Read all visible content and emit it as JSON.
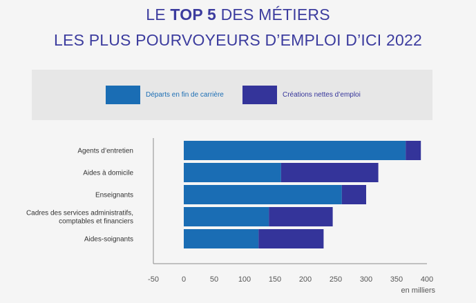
{
  "title": {
    "line1_prefix": "LE ",
    "line1_bold": "TOP 5",
    "line1_suffix": " DES MÉTIERS",
    "line2": "LES PLUS POURVOYEURS D’EMPLOI D’ICI 2022"
  },
  "chart_data": {
    "type": "bar",
    "orientation": "horizontal",
    "stacked": true,
    "categories": [
      "Agents d’entretien",
      "Aides à domicile",
      "Enseignants",
      "Cadres des services administratifs, comptables et financiers",
      "Aides-soignants"
    ],
    "category_lines": [
      [
        "Agents d’entretien"
      ],
      [
        "Aides à domicile"
      ],
      [
        "Enseignants"
      ],
      [
        "Cadres des services administratifs,",
        "comptables et financiers"
      ],
      [
        "Aides-soignants"
      ]
    ],
    "series": [
      {
        "name": "Départs en fin de carrière",
        "color": "#1a6db4",
        "values": [
          365,
          160,
          260,
          140,
          123
        ]
      },
      {
        "name": "Créations nettes d’emploi",
        "color": "#34349a",
        "values": [
          25,
          160,
          40,
          105,
          107
        ]
      }
    ],
    "xlim": [
      -50,
      400
    ],
    "xticks": [
      -50,
      0,
      50,
      100,
      150,
      200,
      250,
      300,
      350,
      400
    ],
    "xunit": "en milliers",
    "grid": false,
    "legend_position": "top"
  },
  "colors": {
    "title": "#3c3c9e",
    "background": "#f5f5f5",
    "legend_box": "#e7e7e7"
  }
}
